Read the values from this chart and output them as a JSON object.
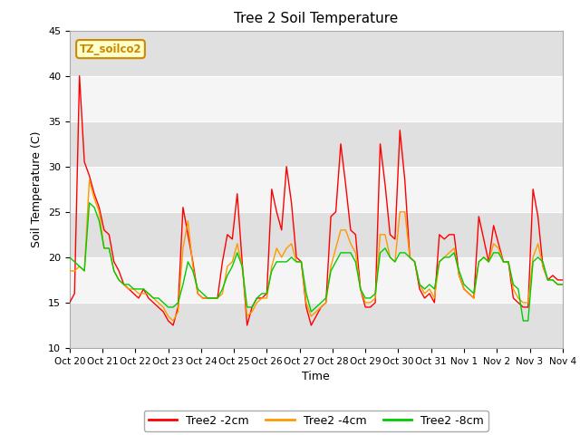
{
  "title": "Tree 2 Soil Temperature",
  "xlabel": "Time",
  "ylabel": "Soil Temperature (C)",
  "ylim": [
    10,
    45
  ],
  "annotation_text": "TZ_soilco2",
  "annotation_bg": "#ffffcc",
  "annotation_border": "#cc8800",
  "background_color": "#ffffff",
  "plot_bg": "#e8e8e8",
  "band_light": "#f5f5f5",
  "band_dark": "#e0e0e0",
  "legend_labels": [
    "Tree2 -2cm",
    "Tree2 -4cm",
    "Tree2 -8cm"
  ],
  "legend_colors": [
    "#ff0000",
    "#ff9900",
    "#00cc00"
  ],
  "x_tick_labels": [
    "Oct 20",
    "Oct 21",
    "Oct 22",
    "Oct 23",
    "Oct 24",
    "Oct 25",
    "Oct 26",
    "Oct 27",
    "Oct 28",
    "Oct 29",
    "Oct 30",
    "Oct 31",
    "Nov 1",
    "Nov 2",
    "Nov 3",
    "Nov 4"
  ],
  "yticks": [
    10,
    15,
    20,
    25,
    30,
    35,
    40,
    45
  ],
  "series_2cm": [
    15.0,
    16.0,
    40.0,
    30.5,
    29.0,
    27.0,
    25.5,
    23.0,
    22.5,
    19.5,
    18.5,
    17.0,
    16.5,
    16.0,
    15.5,
    16.5,
    15.5,
    15.0,
    14.5,
    14.0,
    13.0,
    12.5,
    14.5,
    25.5,
    22.5,
    19.5,
    16.0,
    15.5,
    15.5,
    15.5,
    15.5,
    19.5,
    22.5,
    22.0,
    27.0,
    19.5,
    12.5,
    14.5,
    15.5,
    15.5,
    16.0,
    27.5,
    25.0,
    23.0,
    30.0,
    26.0,
    20.0,
    19.5,
    14.5,
    12.5,
    13.5,
    14.5,
    15.0,
    24.5,
    25.0,
    32.5,
    28.0,
    23.0,
    22.5,
    16.5,
    14.5,
    14.5,
    15.0,
    32.5,
    28.0,
    22.5,
    22.0,
    34.0,
    28.5,
    20.0,
    19.5,
    16.5,
    15.5,
    16.0,
    15.0,
    22.5,
    22.0,
    22.5,
    22.5,
    18.0,
    16.5,
    16.0,
    15.5,
    24.5,
    22.0,
    19.5,
    23.5,
    21.5,
    19.5,
    19.5,
    15.5,
    15.0,
    14.5,
    14.5,
    27.5,
    24.5,
    19.0,
    17.5,
    18.0,
    17.5,
    17.5
  ],
  "series_4cm": [
    18.5,
    18.5,
    19.0,
    18.5,
    28.5,
    26.5,
    25.0,
    21.0,
    21.0,
    18.5,
    17.5,
    17.0,
    16.5,
    16.5,
    16.0,
    16.0,
    16.0,
    15.5,
    15.0,
    14.5,
    13.5,
    13.0,
    14.0,
    21.0,
    24.0,
    19.0,
    16.0,
    15.5,
    15.5,
    15.5,
    15.5,
    16.0,
    19.0,
    19.5,
    21.5,
    19.0,
    13.5,
    14.0,
    15.0,
    15.5,
    15.5,
    19.0,
    21.0,
    20.0,
    21.0,
    21.5,
    19.5,
    19.5,
    15.0,
    13.5,
    14.0,
    14.5,
    15.0,
    19.0,
    21.0,
    23.0,
    23.0,
    21.5,
    20.5,
    16.5,
    15.0,
    15.0,
    15.5,
    22.5,
    22.5,
    20.0,
    19.5,
    25.0,
    25.0,
    20.0,
    19.5,
    17.0,
    16.0,
    16.5,
    15.5,
    19.5,
    20.0,
    20.5,
    21.0,
    18.0,
    16.5,
    16.0,
    15.5,
    19.5,
    20.0,
    19.5,
    21.5,
    21.0,
    19.5,
    19.5,
    16.5,
    15.5,
    15.0,
    15.0,
    20.0,
    21.5,
    19.0,
    17.5,
    17.5,
    17.0,
    17.0
  ],
  "series_8cm": [
    20.0,
    19.5,
    19.0,
    18.5,
    26.0,
    25.5,
    24.0,
    21.0,
    21.0,
    18.5,
    17.5,
    17.0,
    17.0,
    16.5,
    16.5,
    16.5,
    16.0,
    15.5,
    15.5,
    15.0,
    14.5,
    14.5,
    15.0,
    17.0,
    19.5,
    18.5,
    16.5,
    16.0,
    15.5,
    15.5,
    15.5,
    16.5,
    18.0,
    19.0,
    20.5,
    19.0,
    14.5,
    14.5,
    15.5,
    16.0,
    16.0,
    18.5,
    19.5,
    19.5,
    19.5,
    20.0,
    19.5,
    19.5,
    16.0,
    14.0,
    14.5,
    15.0,
    15.5,
    18.5,
    19.5,
    20.5,
    20.5,
    20.5,
    19.5,
    16.5,
    15.5,
    15.5,
    16.0,
    20.5,
    21.0,
    20.0,
    19.5,
    20.5,
    20.5,
    20.0,
    19.5,
    17.0,
    16.5,
    17.0,
    16.5,
    19.5,
    20.0,
    20.0,
    20.5,
    18.5,
    17.0,
    16.5,
    16.0,
    19.5,
    20.0,
    19.5,
    20.5,
    20.5,
    19.5,
    19.5,
    17.0,
    16.5,
    13.0,
    13.0,
    19.5,
    20.0,
    19.5,
    17.5,
    17.5,
    17.0,
    17.0
  ]
}
